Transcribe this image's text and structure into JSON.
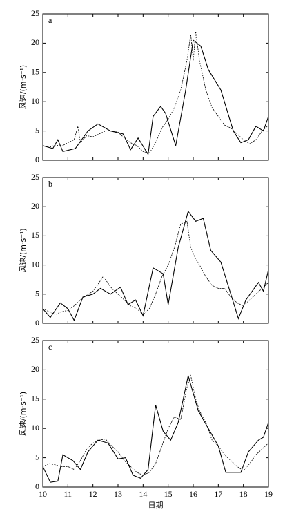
{
  "chart_data": [
    {
      "type": "line",
      "label": "a",
      "ylabel": "风速/(m·s⁻¹)",
      "xlim": [
        10,
        19
      ],
      "xticks": [
        10,
        11,
        12,
        13,
        14,
        15,
        16,
        17,
        18,
        19
      ],
      "ylim": [
        0,
        25
      ],
      "yticks": [
        0,
        5,
        10,
        15,
        20,
        25
      ],
      "series": [
        {
          "color": "#000000",
          "style": "solid",
          "x": [
            10,
            10.4,
            10.6,
            10.8,
            11.3,
            11.8,
            12.2,
            12.7,
            13.2,
            13.5,
            13.8,
            14.2,
            14.4,
            14.7,
            14.9,
            15.3,
            15.7,
            16.0,
            16.3,
            16.6,
            17.1,
            17.6,
            17.9,
            18.2,
            18.5,
            18.8,
            19
          ],
          "values": [
            2.5,
            2,
            3.5,
            1.5,
            2,
            5,
            6.2,
            5,
            4.5,
            1.8,
            3.8,
            1,
            7.5,
            9.2,
            8,
            2.5,
            12,
            20.5,
            19.5,
            15.5,
            12,
            5,
            3,
            3.5,
            5.8,
            5,
            7.5
          ]
        },
        {
          "color": "#000000",
          "style": "dashed",
          "x": [
            10,
            10.25,
            10.5,
            10.75,
            11,
            11.25,
            11.4,
            11.5,
            11.75,
            12,
            12.25,
            12.5,
            12.75,
            13,
            13.25,
            13.5,
            13.75,
            14,
            14.25,
            14.5,
            14.75,
            15,
            15.25,
            15.5,
            15.75,
            15.9,
            16.0,
            16.1,
            16.25,
            16.5,
            16.75,
            17,
            17.25,
            17.5,
            17.75,
            18,
            18.25,
            18.5,
            18.75,
            19
          ],
          "values": [
            2.5,
            2.2,
            2.6,
            2.4,
            3,
            3.5,
            5.8,
            3,
            4.2,
            4,
            4.5,
            5,
            5,
            4.8,
            3.8,
            3,
            2.5,
            1.5,
            1.2,
            3,
            5.5,
            7,
            9,
            12,
            17,
            21.5,
            17,
            22,
            17,
            12,
            9,
            7.5,
            6,
            5.5,
            4.5,
            3.5,
            2.8,
            3.5,
            5,
            6
          ]
        }
      ]
    },
    {
      "type": "line",
      "label": "b",
      "ylabel": "风速/(m·s⁻¹)",
      "xlim": [
        10,
        19
      ],
      "xticks": [
        10,
        11,
        12,
        13,
        14,
        15,
        16,
        17,
        18,
        19
      ],
      "ylim": [
        0,
        25
      ],
      "yticks": [
        0,
        5,
        10,
        15,
        20,
        25
      ],
      "series": [
        {
          "color": "#000000",
          "style": "solid",
          "x": [
            10,
            10.3,
            10.7,
            11,
            11.25,
            11.6,
            12,
            12.3,
            12.7,
            13.1,
            13.4,
            13.7,
            14,
            14.4,
            14.8,
            15,
            15.4,
            15.8,
            16.1,
            16.4,
            16.7,
            17.1,
            17.5,
            17.8,
            18.1,
            18.6,
            18.8,
            19
          ],
          "values": [
            2.5,
            1,
            3.5,
            2.5,
            0.5,
            4.5,
            5,
            6,
            5,
            6.2,
            3.2,
            4,
            1.3,
            9.5,
            8.5,
            3.2,
            13,
            19.2,
            17.5,
            18,
            12.5,
            10.5,
            5,
            0.8,
            4,
            7,
            5.5,
            9.2
          ]
        },
        {
          "color": "#000000",
          "style": "dashed",
          "x": [
            10,
            10.25,
            10.5,
            10.75,
            11,
            11.25,
            11.5,
            11.75,
            12,
            12.25,
            12.4,
            12.5,
            12.75,
            13,
            13.25,
            13.5,
            13.75,
            14,
            14.25,
            14.5,
            14.75,
            15,
            15.25,
            15.5,
            15.75,
            15.9,
            16.1,
            16.25,
            16.5,
            16.75,
            17,
            17.25,
            17.5,
            17.75,
            18,
            18.25,
            18.5,
            18.75,
            19
          ],
          "values": [
            2.5,
            2,
            1.5,
            2,
            2.2,
            3,
            4,
            4.8,
            5.5,
            7,
            8,
            7.5,
            6,
            5,
            4,
            3,
            2.5,
            1.5,
            2.5,
            5,
            8,
            10,
            13,
            17,
            17.5,
            13,
            11,
            10,
            8,
            6.5,
            6,
            6,
            4.5,
            3.5,
            3,
            4,
            5,
            6,
            7
          ]
        }
      ]
    },
    {
      "type": "line",
      "label": "c",
      "ylabel": "风速/(m·s⁻¹)",
      "xlabel": "日期",
      "xlim": [
        10,
        19
      ],
      "xticks": [
        10,
        11,
        12,
        13,
        14,
        15,
        16,
        17,
        18,
        19
      ],
      "ylim": [
        0,
        25
      ],
      "yticks": [
        0,
        5,
        10,
        15,
        20,
        25
      ],
      "series": [
        {
          "color": "#000000",
          "style": "solid",
          "x": [
            10,
            10.3,
            10.6,
            10.8,
            11.2,
            11.5,
            11.8,
            12.2,
            12.6,
            13,
            13.3,
            13.6,
            13.9,
            14.2,
            14.5,
            14.8,
            15.1,
            15.4,
            15.8,
            16.2,
            16.6,
            17,
            17.3,
            17.6,
            17.9,
            18.2,
            18.6,
            18.8,
            19
          ],
          "values": [
            3.5,
            0.8,
            1,
            5.5,
            4.5,
            3,
            6,
            8,
            7.5,
            4.8,
            5,
            2,
            1.5,
            3,
            14,
            9.5,
            8,
            11,
            19,
            13,
            10,
            7,
            2.5,
            2.5,
            2.5,
            6,
            8,
            8.5,
            11
          ]
        },
        {
          "color": "#000000",
          "style": "dashed",
          "x": [
            10,
            10.25,
            10.5,
            10.75,
            11,
            11.25,
            11.5,
            11.75,
            12,
            12.25,
            12.5,
            12.75,
            13,
            13.25,
            13.5,
            13.75,
            14,
            14.25,
            14.5,
            14.75,
            15,
            15.25,
            15.5,
            15.75,
            15.9,
            16.1,
            16.25,
            16.5,
            16.75,
            17,
            17.25,
            17.5,
            17.75,
            18,
            18.25,
            18.5,
            18.75,
            19
          ],
          "values": [
            3.5,
            4,
            3.8,
            3.5,
            3.5,
            3,
            4.5,
            6.5,
            7.5,
            8,
            8.2,
            7,
            6,
            4.5,
            3.5,
            2.5,
            2,
            2.5,
            4,
            7,
            10,
            12,
            11.5,
            17,
            19,
            15,
            13,
            11,
            8,
            7,
            5.5,
            4.5,
            3.5,
            2.8,
            4,
            5.5,
            6.5,
            7.5
          ]
        }
      ]
    }
  ]
}
